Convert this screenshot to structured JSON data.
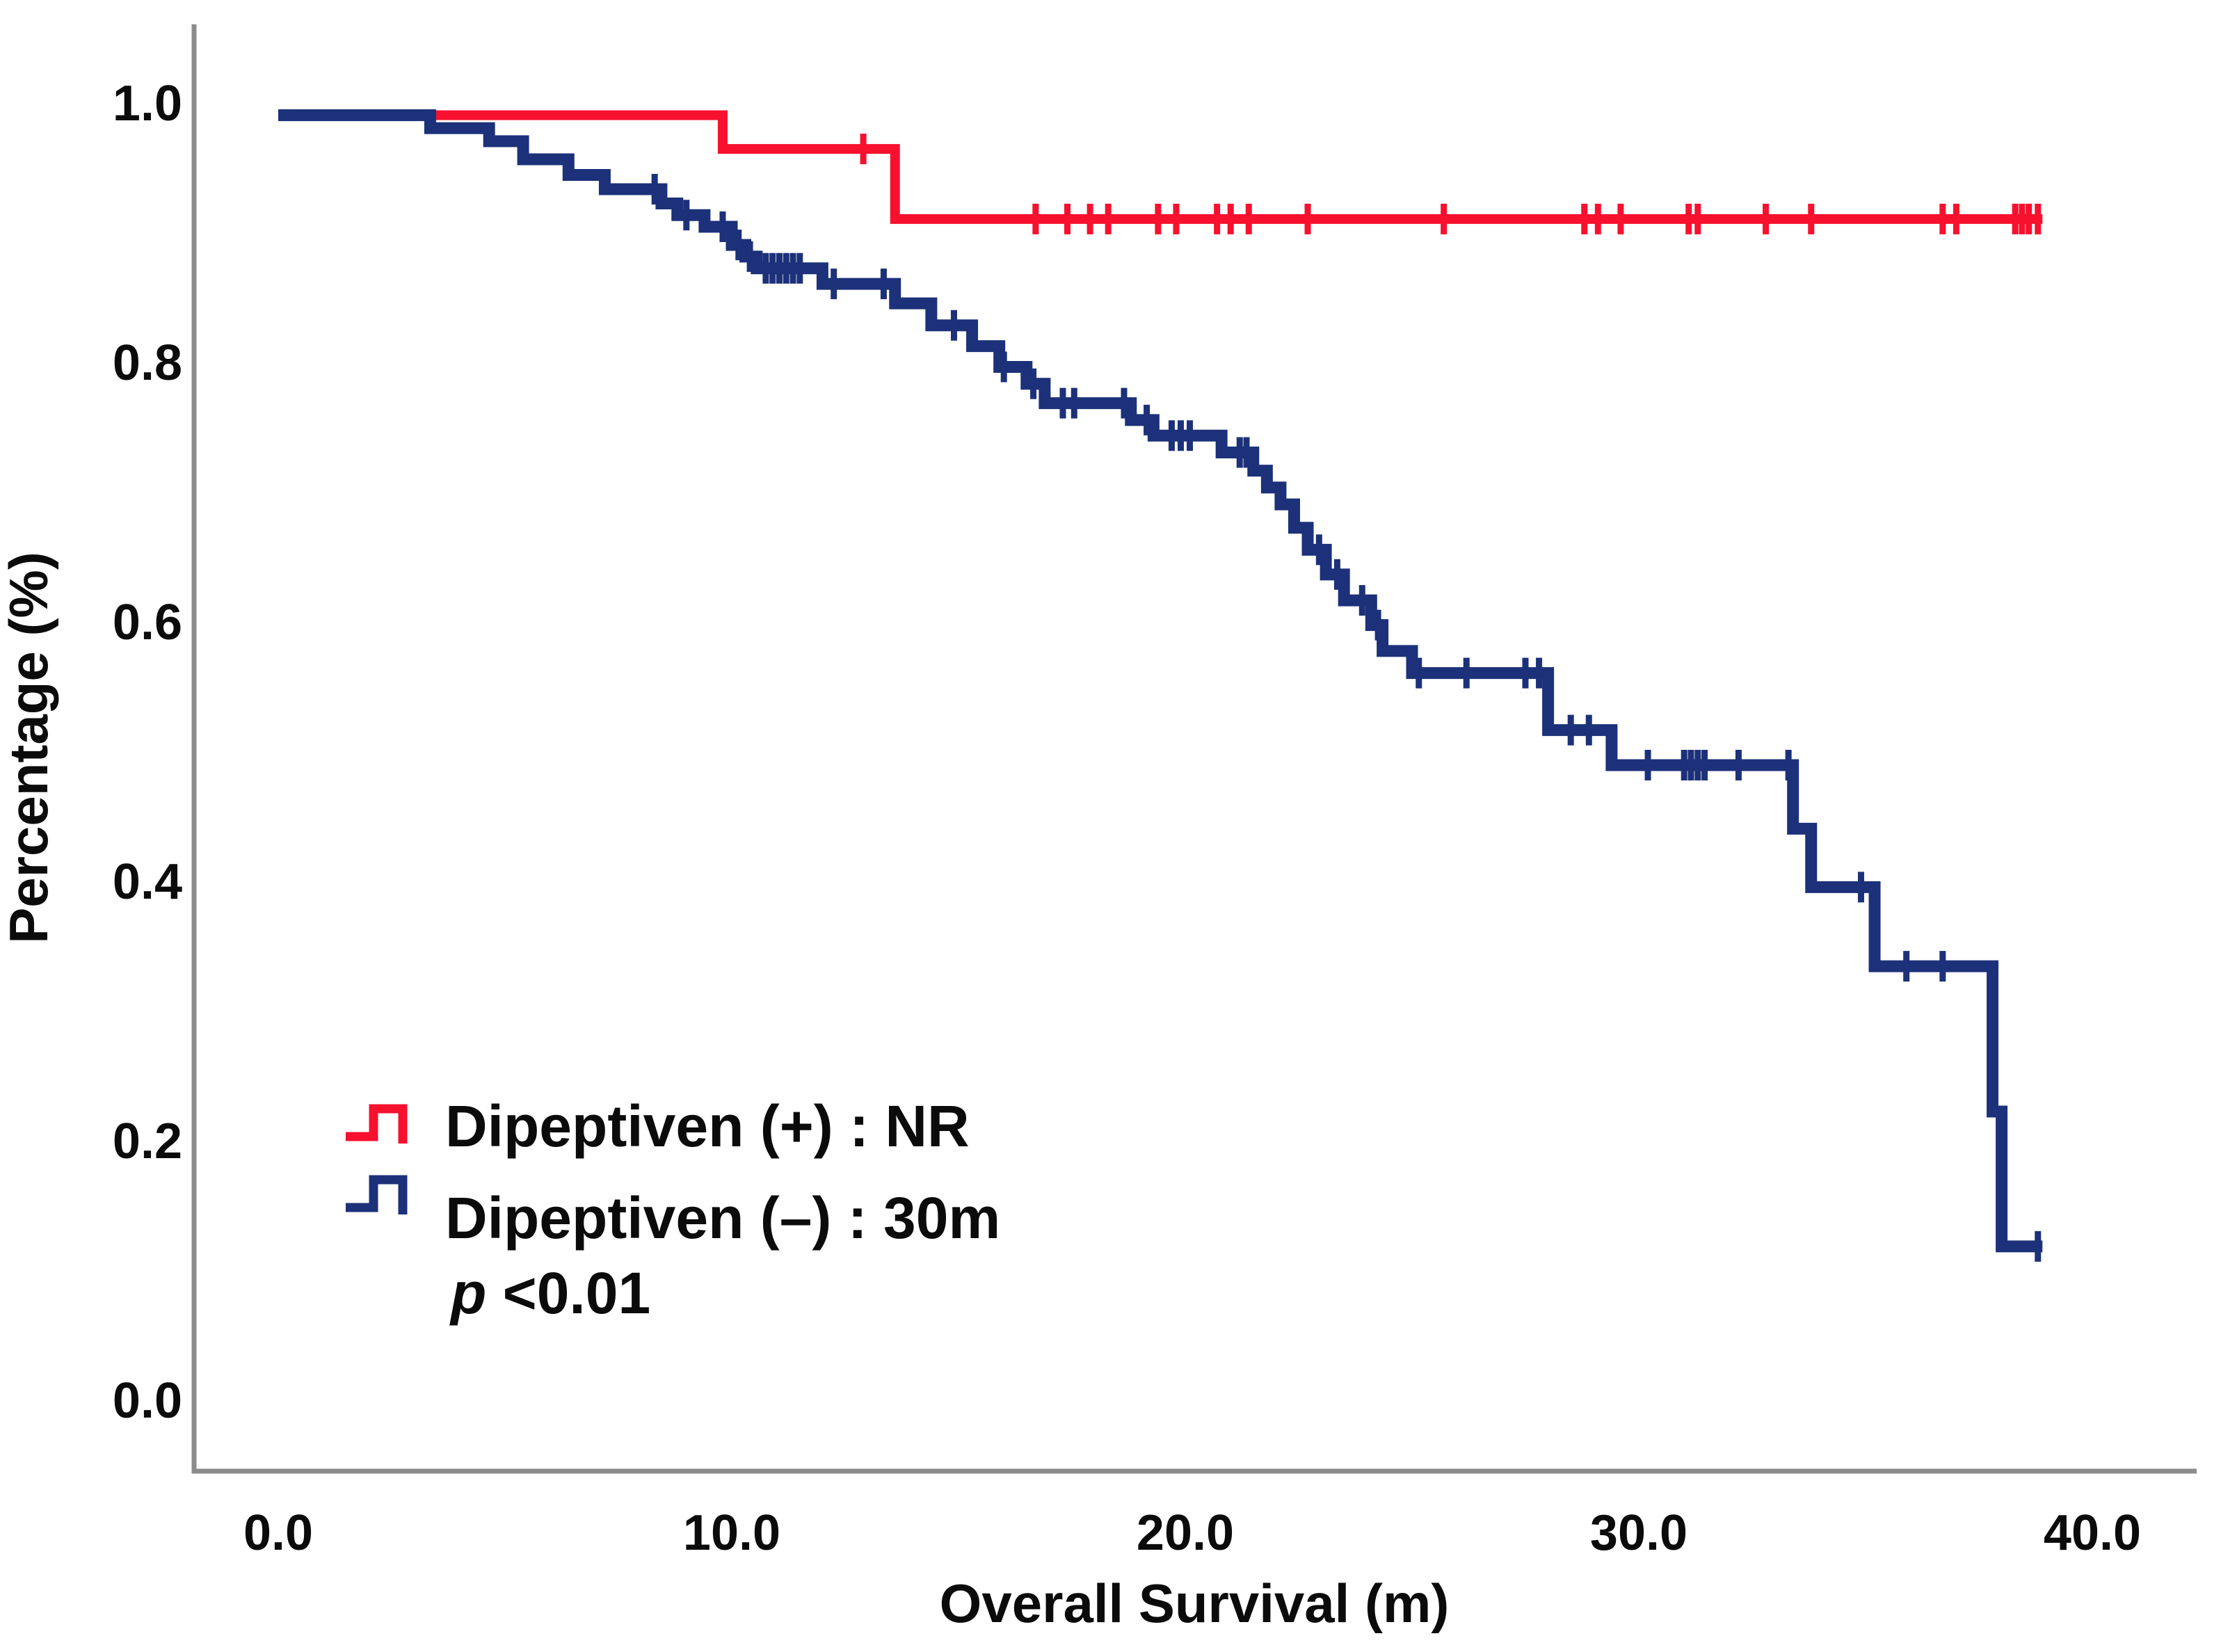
{
  "chart_data": {
    "type": "line",
    "subtype": "kaplan-meier-step",
    "title": "",
    "xlabel": "Overall Survival (m)",
    "ylabel": "Percentage (%)",
    "xlim": [
      0,
      40
    ],
    "ylim": [
      0,
      1.0
    ],
    "grid": false,
    "legend_position": "lower-left-inside",
    "x_ticks": [
      0,
      10,
      20,
      30,
      40
    ],
    "x_tick_labels": [
      "0.0",
      "10.0",
      "20.0",
      "30.0",
      "40.0"
    ],
    "y_ticks": [
      1.0,
      0.8,
      0.6,
      0.4,
      0.2,
      0.0
    ],
    "y_tick_labels": [
      "1.0",
      "0.8",
      "0.6",
      "0.4",
      "0.2",
      "0.0"
    ],
    "p_label": "p",
    "p_value": " <0.01",
    "axis_color": "#8c8c8c",
    "series": [
      {
        "name": "Dipeptiven (+)",
        "legend_label": "Dipeptiven (+) : NR",
        "median_survival": "NR",
        "color": "#f8102f",
        "end": 38.9,
        "steps": [
          [
            0,
            0.99
          ],
          [
            9.8,
            0.964
          ],
          [
            13.6,
            0.91
          ]
        ],
        "censors": [
          [
            12.9,
            0.964
          ],
          [
            16.7,
            0.91
          ],
          [
            17.4,
            0.91
          ],
          [
            17.9,
            0.91
          ],
          [
            18.3,
            0.91
          ],
          [
            19.4,
            0.91
          ],
          [
            19.8,
            0.91
          ],
          [
            20.7,
            0.91
          ],
          [
            21.0,
            0.91
          ],
          [
            21.4,
            0.91
          ],
          [
            22.7,
            0.91
          ],
          [
            25.7,
            0.91
          ],
          [
            28.8,
            0.91
          ],
          [
            29.1,
            0.91
          ],
          [
            29.6,
            0.91
          ],
          [
            31.1,
            0.91
          ],
          [
            31.3,
            0.91
          ],
          [
            32.8,
            0.91
          ],
          [
            33.8,
            0.91
          ],
          [
            36.7,
            0.91
          ],
          [
            37.0,
            0.91
          ],
          [
            38.3,
            0.91
          ],
          [
            38.45,
            0.91
          ],
          [
            38.6,
            0.91
          ],
          [
            38.8,
            0.91
          ]
        ]
      },
      {
        "name": "Dipeptiven (–)",
        "legend_label": "Dipeptiven (–) : 30m",
        "median_survival": "30m",
        "color": "#1c3179",
        "end": 38.9,
        "steps": [
          [
            0,
            0.99
          ],
          [
            3.35,
            0.98
          ],
          [
            4.65,
            0.97
          ],
          [
            5.4,
            0.956
          ],
          [
            6.4,
            0.944
          ],
          [
            7.2,
            0.933
          ],
          [
            8.45,
            0.922
          ],
          [
            8.8,
            0.913
          ],
          [
            9.4,
            0.904
          ],
          [
            10.0,
            0.89
          ],
          [
            10.3,
            0.881
          ],
          [
            10.55,
            0.872
          ],
          [
            12.0,
            0.86
          ],
          [
            13.6,
            0.845
          ],
          [
            14.4,
            0.828
          ],
          [
            15.3,
            0.812
          ],
          [
            15.9,
            0.796
          ],
          [
            16.5,
            0.783
          ],
          [
            16.9,
            0.768
          ],
          [
            18.8,
            0.755
          ],
          [
            19.3,
            0.743
          ],
          [
            20.8,
            0.73
          ],
          [
            21.5,
            0.716
          ],
          [
            21.8,
            0.703
          ],
          [
            22.1,
            0.69
          ],
          [
            22.4,
            0.672
          ],
          [
            22.7,
            0.655
          ],
          [
            23.1,
            0.636
          ],
          [
            23.5,
            0.616
          ],
          [
            24.1,
            0.597
          ],
          [
            24.35,
            0.577
          ],
          [
            25.0,
            0.56
          ],
          [
            28.0,
            0.516
          ],
          [
            29.4,
            0.489
          ],
          [
            33.4,
            0.44
          ],
          [
            33.8,
            0.395
          ],
          [
            35.2,
            0.334
          ],
          [
            37.8,
            0.222
          ],
          [
            38.0,
            0.118
          ]
        ],
        "censors": [
          [
            8.3,
            0.933
          ],
          [
            9.0,
            0.913
          ],
          [
            9.8,
            0.904
          ],
          [
            10.15,
            0.89
          ],
          [
            10.4,
            0.881
          ],
          [
            10.75,
            0.872
          ],
          [
            10.9,
            0.872
          ],
          [
            11.05,
            0.872
          ],
          [
            11.2,
            0.872
          ],
          [
            11.35,
            0.872
          ],
          [
            11.5,
            0.872
          ],
          [
            12.25,
            0.86
          ],
          [
            13.35,
            0.86
          ],
          [
            14.9,
            0.828
          ],
          [
            16.0,
            0.796
          ],
          [
            16.65,
            0.783
          ],
          [
            17.3,
            0.768
          ],
          [
            17.55,
            0.768
          ],
          [
            18.65,
            0.768
          ],
          [
            19.15,
            0.755
          ],
          [
            19.7,
            0.743
          ],
          [
            19.9,
            0.743
          ],
          [
            20.1,
            0.743
          ],
          [
            21.2,
            0.73
          ],
          [
            21.35,
            0.73
          ],
          [
            22.95,
            0.655
          ],
          [
            23.35,
            0.636
          ],
          [
            23.9,
            0.616
          ],
          [
            24.25,
            0.597
          ],
          [
            25.15,
            0.56
          ],
          [
            26.2,
            0.56
          ],
          [
            27.5,
            0.56
          ],
          [
            27.8,
            0.56
          ],
          [
            28.5,
            0.516
          ],
          [
            28.9,
            0.516
          ],
          [
            30.2,
            0.489
          ],
          [
            31.0,
            0.489
          ],
          [
            31.15,
            0.489
          ],
          [
            31.3,
            0.489
          ],
          [
            31.45,
            0.489
          ],
          [
            32.2,
            0.489
          ],
          [
            33.3,
            0.489
          ],
          [
            34.9,
            0.395
          ],
          [
            35.9,
            0.334
          ],
          [
            36.7,
            0.334
          ],
          [
            38.8,
            0.118
          ]
        ]
      }
    ]
  }
}
